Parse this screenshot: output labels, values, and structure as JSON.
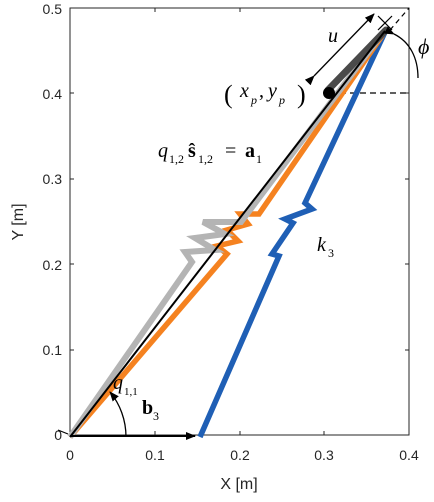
{
  "figure": {
    "xlabel": "X [m]",
    "ylabel": "Y [m]",
    "xticks": [
      "0",
      "0.1",
      "0.2",
      "0.3",
      "0.4"
    ],
    "yticks": [
      "0",
      "0.1",
      "0.2",
      "0.3",
      "0.4",
      "0.5"
    ],
    "xlim": [
      0,
      0.4
    ],
    "ylim": [
      0,
      0.5
    ],
    "grid": false
  },
  "annotations": {
    "u": "u",
    "phi": "ϕ",
    "point_open": "(",
    "point_x": "x",
    "point_x_sub": "p",
    "point_comma": ",",
    "point_y": "y",
    "point_y_sub": "p",
    "point_close": ")",
    "q_main": "q",
    "q_main_sub": "1,2",
    "s_hat": "ŝ",
    "s_sub": "1,2",
    "equals": "=",
    "a_vec": "a",
    "a_sub": "1",
    "k3": "k",
    "k3_sub": "3",
    "q11": "q",
    "q11_sub": "1,1",
    "b3": "b",
    "b3_sub": "3"
  },
  "colors": {
    "link_orange": "#F58220",
    "link_blue": "#1F5FB5",
    "link_gray": "#B4B4B4",
    "link_black": "#000000"
  },
  "geometry_data": {
    "origin": [
      0,
      0
    ],
    "b3_anchor": [
      0.15,
      0
    ],
    "platform_center": [
      0.3,
      0.4
    ],
    "tip": [
      0.375,
      0.465
    ]
  }
}
